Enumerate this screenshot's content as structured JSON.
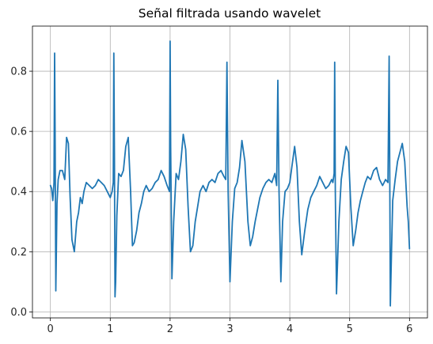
{
  "chart_data": {
    "type": "line",
    "title": "Señal filtrada usando wavelet",
    "xlabel": "",
    "ylabel": "",
    "xlim": [
      -0.3,
      6.3
    ],
    "ylim": [
      -0.02,
      0.95
    ],
    "xticks": [
      0,
      1,
      2,
      3,
      4,
      5,
      6
    ],
    "xtick_labels": [
      "0",
      "1",
      "2",
      "3",
      "4",
      "5",
      "6"
    ],
    "yticks": [
      0.0,
      0.2,
      0.4,
      0.6,
      0.8
    ],
    "ytick_labels": [
      "0.0",
      "0.2",
      "0.4",
      "0.6",
      "0.8"
    ],
    "grid": true,
    "series": [
      {
        "color": "#1f77b4",
        "x": [
          0.0,
          0.02,
          0.04,
          0.05,
          0.06,
          0.07,
          0.08,
          0.09,
          0.1,
          0.11,
          0.13,
          0.16,
          0.2,
          0.24,
          0.27,
          0.3,
          0.33,
          0.36,
          0.4,
          0.44,
          0.47,
          0.5,
          0.53,
          0.56,
          0.6,
          0.65,
          0.7,
          0.75,
          0.8,
          0.85,
          0.9,
          0.95,
          1.0,
          1.03,
          1.05,
          1.06,
          1.07,
          1.08,
          1.09,
          1.11,
          1.14,
          1.18,
          1.22,
          1.26,
          1.3,
          1.34,
          1.37,
          1.4,
          1.44,
          1.48,
          1.52,
          1.56,
          1.6,
          1.65,
          1.7,
          1.75,
          1.8,
          1.85,
          1.9,
          1.95,
          1.99,
          2.0,
          2.01,
          2.03,
          2.06,
          2.1,
          2.14,
          2.18,
          2.22,
          2.26,
          2.3,
          2.34,
          2.38,
          2.42,
          2.46,
          2.5,
          2.55,
          2.6,
          2.65,
          2.7,
          2.75,
          2.8,
          2.85,
          2.9,
          2.93,
          2.95,
          2.97,
          3.0,
          3.04,
          3.08,
          3.12,
          3.16,
          3.2,
          3.25,
          3.3,
          3.34,
          3.38,
          3.42,
          3.46,
          3.5,
          3.55,
          3.6,
          3.65,
          3.7,
          3.75,
          3.78,
          3.8,
          3.82,
          3.85,
          3.88,
          3.92,
          3.96,
          4.0,
          4.04,
          4.08,
          4.12,
          4.16,
          4.2,
          4.25,
          4.3,
          4.35,
          4.4,
          4.45,
          4.5,
          4.55,
          4.6,
          4.65,
          4.7,
          4.72,
          4.74,
          4.75,
          4.76,
          4.78,
          4.82,
          4.86,
          4.9,
          4.94,
          4.98,
          5.02,
          5.06,
          5.1,
          5.14,
          5.18,
          5.22,
          5.26,
          5.3,
          5.35,
          5.4,
          5.45,
          5.5,
          5.55,
          5.6,
          5.64,
          5.66,
          5.67,
          5.68,
          5.7,
          5.72,
          5.76,
          5.8,
          5.84,
          5.88,
          5.92,
          5.96,
          5.98,
          6.0
        ],
        "y": [
          0.42,
          0.41,
          0.37,
          0.4,
          0.43,
          0.86,
          0.55,
          0.07,
          0.2,
          0.36,
          0.44,
          0.47,
          0.47,
          0.44,
          0.58,
          0.56,
          0.38,
          0.24,
          0.2,
          0.3,
          0.33,
          0.38,
          0.36,
          0.4,
          0.43,
          0.42,
          0.41,
          0.42,
          0.44,
          0.43,
          0.42,
          0.4,
          0.38,
          0.4,
          0.43,
          0.86,
          0.5,
          0.05,
          0.1,
          0.32,
          0.46,
          0.45,
          0.47,
          0.55,
          0.58,
          0.4,
          0.22,
          0.23,
          0.27,
          0.33,
          0.36,
          0.4,
          0.42,
          0.4,
          0.41,
          0.43,
          0.44,
          0.47,
          0.45,
          0.42,
          0.4,
          0.9,
          0.55,
          0.11,
          0.3,
          0.46,
          0.44,
          0.5,
          0.59,
          0.54,
          0.35,
          0.2,
          0.22,
          0.3,
          0.35,
          0.4,
          0.42,
          0.4,
          0.43,
          0.44,
          0.43,
          0.46,
          0.47,
          0.45,
          0.44,
          0.83,
          0.4,
          0.1,
          0.3,
          0.41,
          0.43,
          0.48,
          0.57,
          0.5,
          0.3,
          0.22,
          0.25,
          0.3,
          0.34,
          0.38,
          0.41,
          0.43,
          0.44,
          0.43,
          0.46,
          0.42,
          0.77,
          0.4,
          0.1,
          0.3,
          0.4,
          0.41,
          0.43,
          0.49,
          0.55,
          0.48,
          0.3,
          0.19,
          0.27,
          0.34,
          0.38,
          0.4,
          0.42,
          0.45,
          0.43,
          0.41,
          0.42,
          0.44,
          0.43,
          0.46,
          0.83,
          0.4,
          0.06,
          0.3,
          0.44,
          0.5,
          0.55,
          0.53,
          0.35,
          0.22,
          0.27,
          0.33,
          0.37,
          0.4,
          0.43,
          0.45,
          0.44,
          0.47,
          0.48,
          0.44,
          0.42,
          0.44,
          0.43,
          0.85,
          0.45,
          0.02,
          0.2,
          0.37,
          0.44,
          0.5,
          0.53,
          0.56,
          0.5,
          0.35,
          0.3,
          0.21
        ]
      }
    ]
  }
}
